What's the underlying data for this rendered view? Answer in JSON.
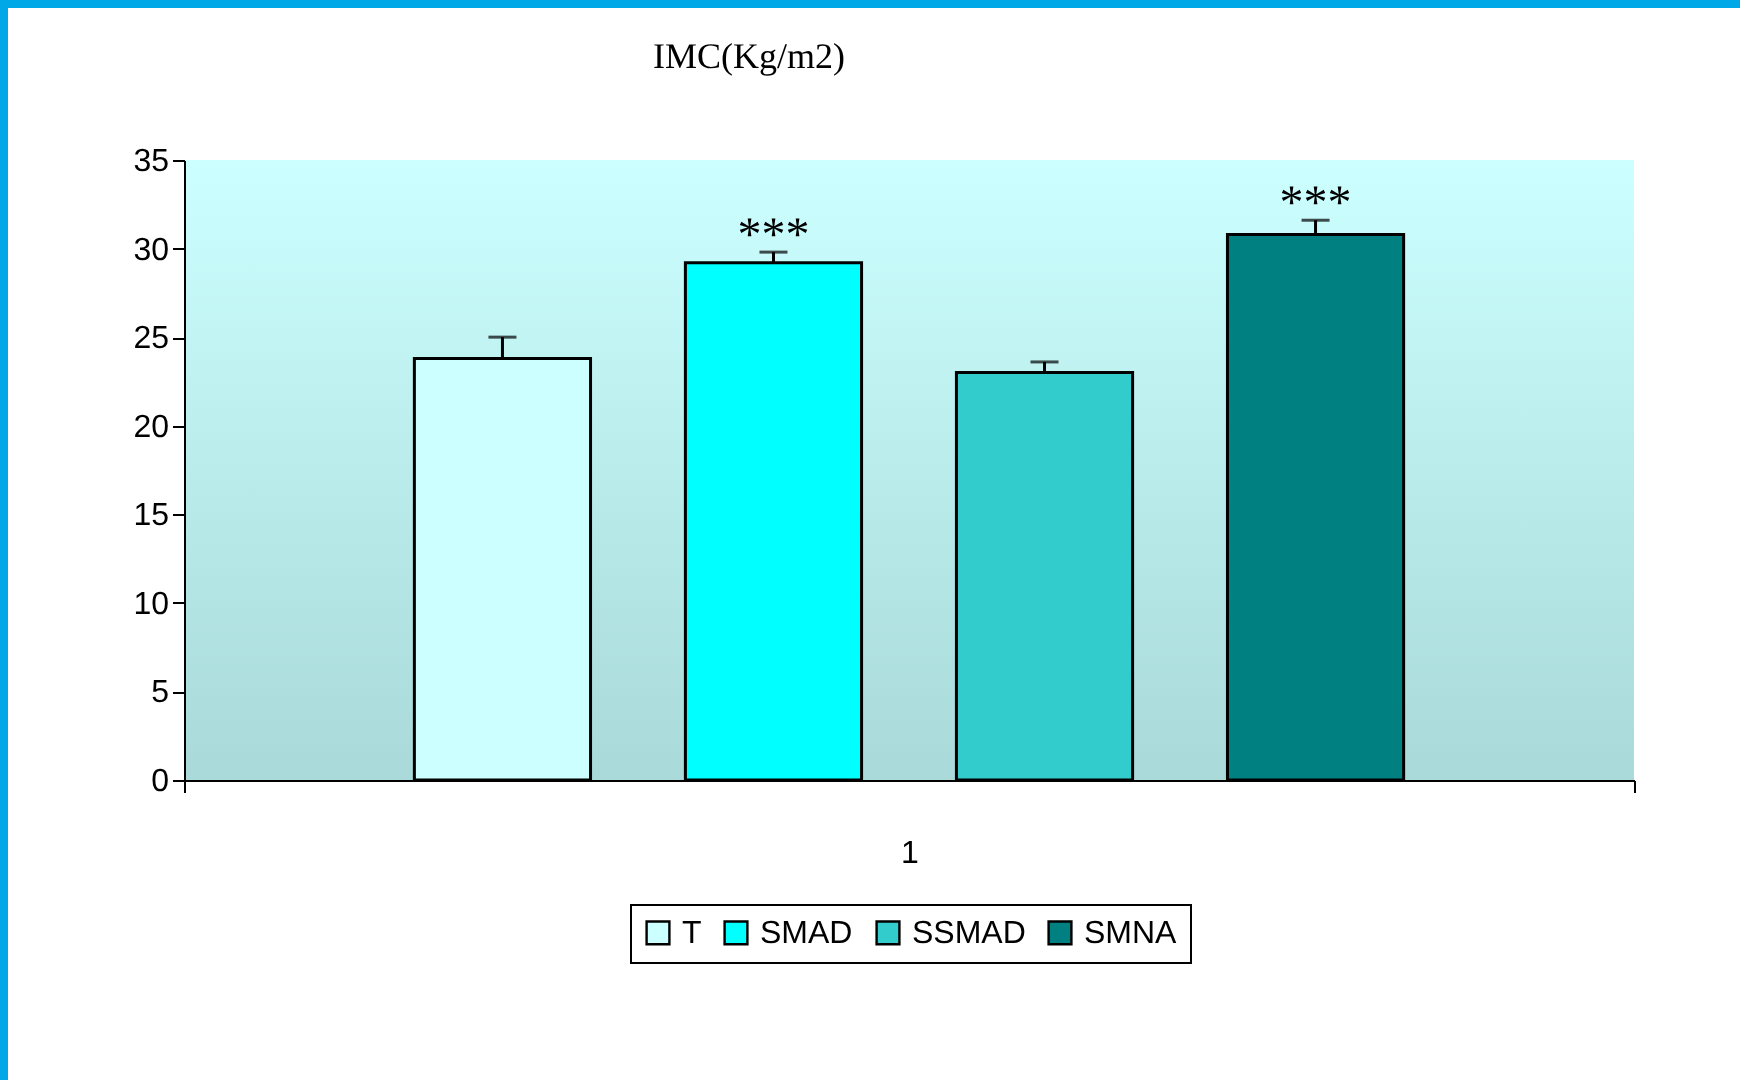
{
  "chart_data": {
    "type": "bar",
    "title": "IMC(Kg/m2)",
    "categories": [
      "1"
    ],
    "series": [
      {
        "name": "T",
        "color": "#ccffff",
        "values": [
          23.8
        ],
        "errors": [
          [
            23.8,
            25.0
          ]
        ]
      },
      {
        "name": "SMAD",
        "color": "#00ffff",
        "values": [
          29.2
        ],
        "errors": [
          [
            29.2,
            29.8
          ]
        ]
      },
      {
        "name": "SSMAD",
        "color": "#33cccc",
        "values": [
          23.0
        ],
        "errors": [
          [
            23.0,
            23.6
          ]
        ]
      },
      {
        "name": "SMNA",
        "color": "#008080",
        "values": [
          30.8
        ],
        "errors": [
          [
            30.8,
            31.6
          ]
        ]
      }
    ],
    "annotations": [
      "***",
      "***"
    ],
    "ylim": [
      0,
      35
    ],
    "yticks": [
      0,
      5,
      10,
      15,
      20,
      25,
      30,
      35
    ],
    "grid": false,
    "legend": "bottom"
  }
}
